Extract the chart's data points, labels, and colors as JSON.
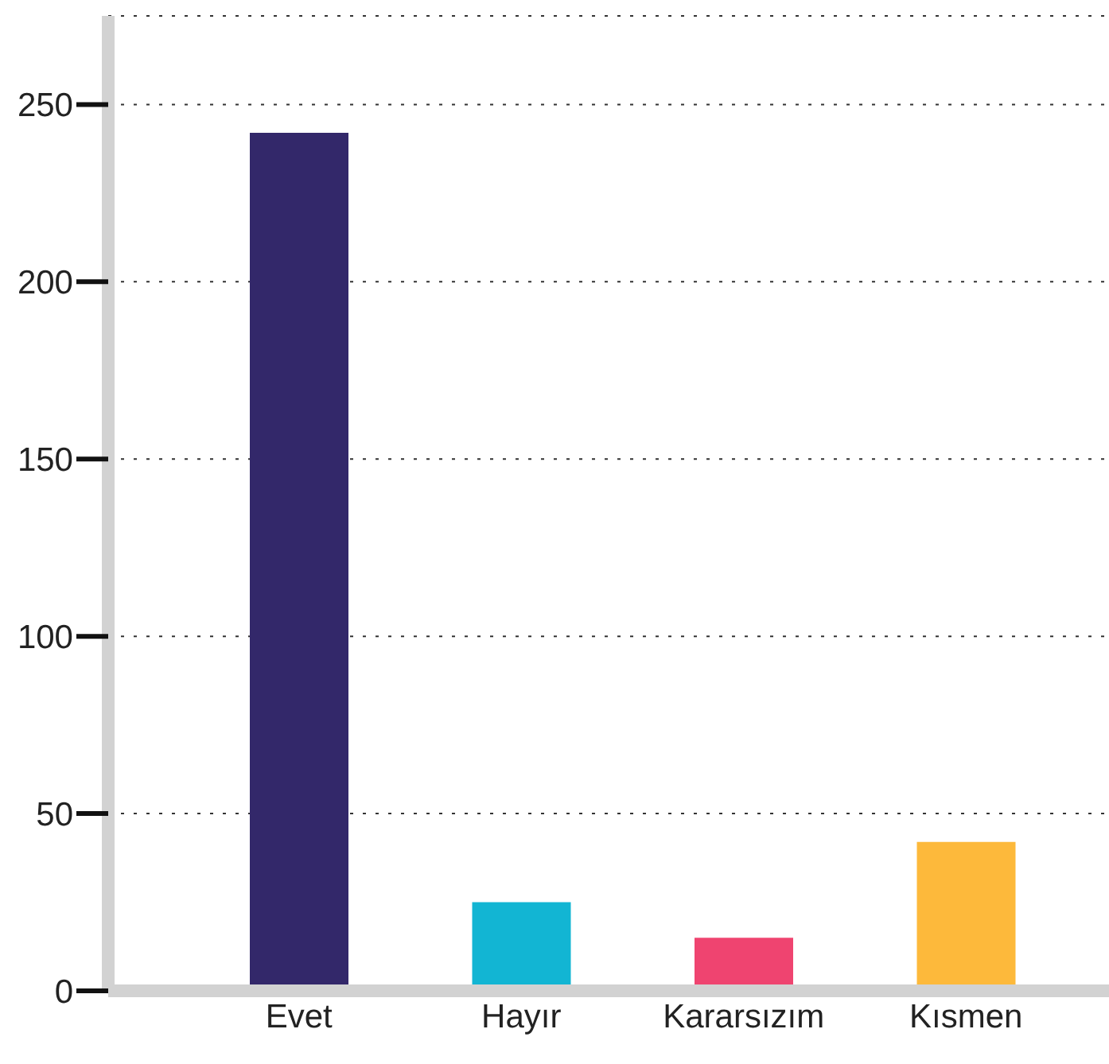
{
  "chart_data": {
    "type": "bar",
    "categories": [
      "Evet",
      "Hayır",
      "Kararsızım",
      "Kısmen"
    ],
    "values": [
      242,
      25,
      15,
      42
    ],
    "colors": [
      "#33286a",
      "#12b5d3",
      "#ef4470",
      "#fdb93b"
    ],
    "ylim": [
      0,
      275
    ],
    "yticks": [
      0,
      50,
      100,
      150,
      200,
      250
    ],
    "grid": "y"
  }
}
